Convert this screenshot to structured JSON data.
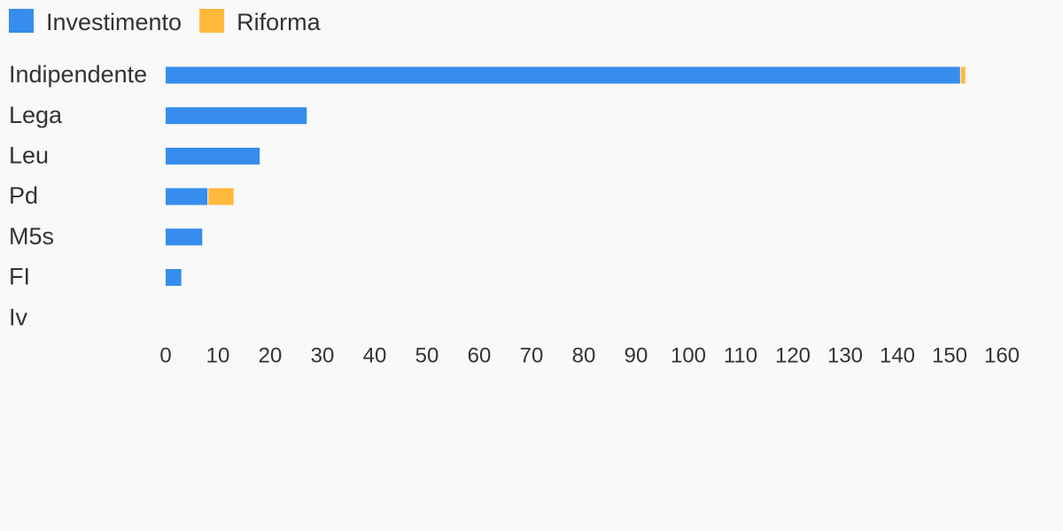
{
  "chart_data": {
    "type": "stacked-bar-horizontal",
    "categories": [
      "Indipendente",
      "Lega",
      "Leu",
      "Pd",
      "M5s",
      "FI",
      "Iv"
    ],
    "series": [
      {
        "name": "Investimento",
        "color": "#368ded",
        "values": [
          152,
          27,
          18,
          8,
          7,
          3,
          0
        ]
      },
      {
        "name": "Riforma",
        "color": "#ffb93b",
        "values": [
          1,
          0,
          0,
          5,
          0,
          0,
          0
        ]
      }
    ],
    "xlim": [
      0,
      160
    ],
    "xticks": [
      0,
      10,
      20,
      30,
      40,
      50,
      60,
      70,
      80,
      90,
      100,
      110,
      120,
      130,
      140,
      150,
      160
    ],
    "legend": "top-left"
  }
}
